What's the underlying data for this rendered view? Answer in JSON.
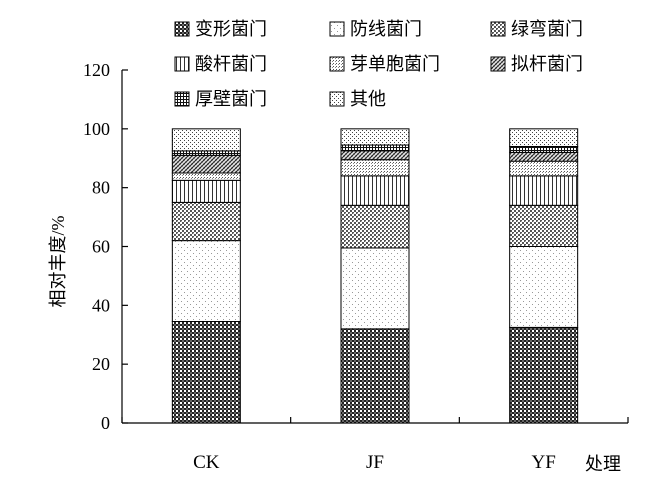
{
  "chart_data": {
    "type": "bar",
    "stacked": true,
    "categories": [
      "CK",
      "JF",
      "YF"
    ],
    "xlabel": "处理",
    "ylabel": "相对丰度/%",
    "ylim": [
      0,
      120
    ],
    "yticks": [
      0,
      20,
      40,
      60,
      80,
      100,
      120
    ],
    "grid": false,
    "legend_position": "top",
    "series": [
      {
        "name": "变形菌门",
        "values": [
          34.5,
          32.0,
          32.5
        ],
        "pattern": "dense-dark-checker"
      },
      {
        "name": "防线菌门",
        "values": [
          27.5,
          27.5,
          27.5
        ],
        "pattern": "sparse-dots"
      },
      {
        "name": "绿弯菌门",
        "values": [
          13.0,
          14.5,
          14.0
        ],
        "pattern": "medium-checker"
      },
      {
        "name": "酸杆菌门",
        "values": [
          7.5,
          10.0,
          10.0
        ],
        "pattern": "vertical-lines"
      },
      {
        "name": "芽单胞菌门",
        "values": [
          2.5,
          5.5,
          5.0
        ],
        "pattern": "fine-dots"
      },
      {
        "name": "拟杆菌门",
        "values": [
          6.0,
          3.0,
          3.0
        ],
        "pattern": "diagonal-hatch"
      },
      {
        "name": "厚壁菌门",
        "values": [
          1.5,
          2.0,
          2.0
        ],
        "pattern": "grid"
      },
      {
        "name": "其他",
        "values": [
          7.5,
          5.5,
          6.0
        ],
        "pattern": "light-dots"
      }
    ]
  }
}
